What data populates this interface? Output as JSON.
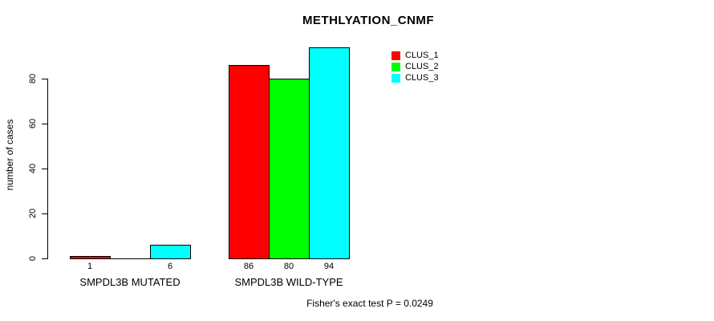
{
  "chart_data": {
    "type": "bar",
    "title": "METHLYATION_CNMF",
    "ylabel": "number of cases",
    "xlabel": "",
    "categories": [
      "SMPDL3B MUTATED",
      "SMPDL3B WILD-TYPE"
    ],
    "series": [
      {
        "name": "CLUS_1",
        "color": "#ff0000",
        "values": [
          1,
          86
        ]
      },
      {
        "name": "CLUS_2",
        "color": "#00ff00",
        "values": [
          0,
          80
        ]
      },
      {
        "name": "CLUS_3",
        "color": "#00ffff",
        "values": [
          6,
          94
        ]
      }
    ],
    "bar_value_labels": [
      [
        "1",
        "",
        "6"
      ],
      [
        "86",
        "80",
        "94"
      ]
    ],
    "y_ticks": [
      0,
      20,
      40,
      60,
      80
    ],
    "y_tick_labels": [
      "0",
      "20",
      "40",
      "60",
      "80"
    ],
    "ylim": [
      0,
      94
    ],
    "grid": false,
    "legend_position": "top-right",
    "bar_border_color": "#000000",
    "annotation": "Fisher's exact test P = 0.0249"
  }
}
